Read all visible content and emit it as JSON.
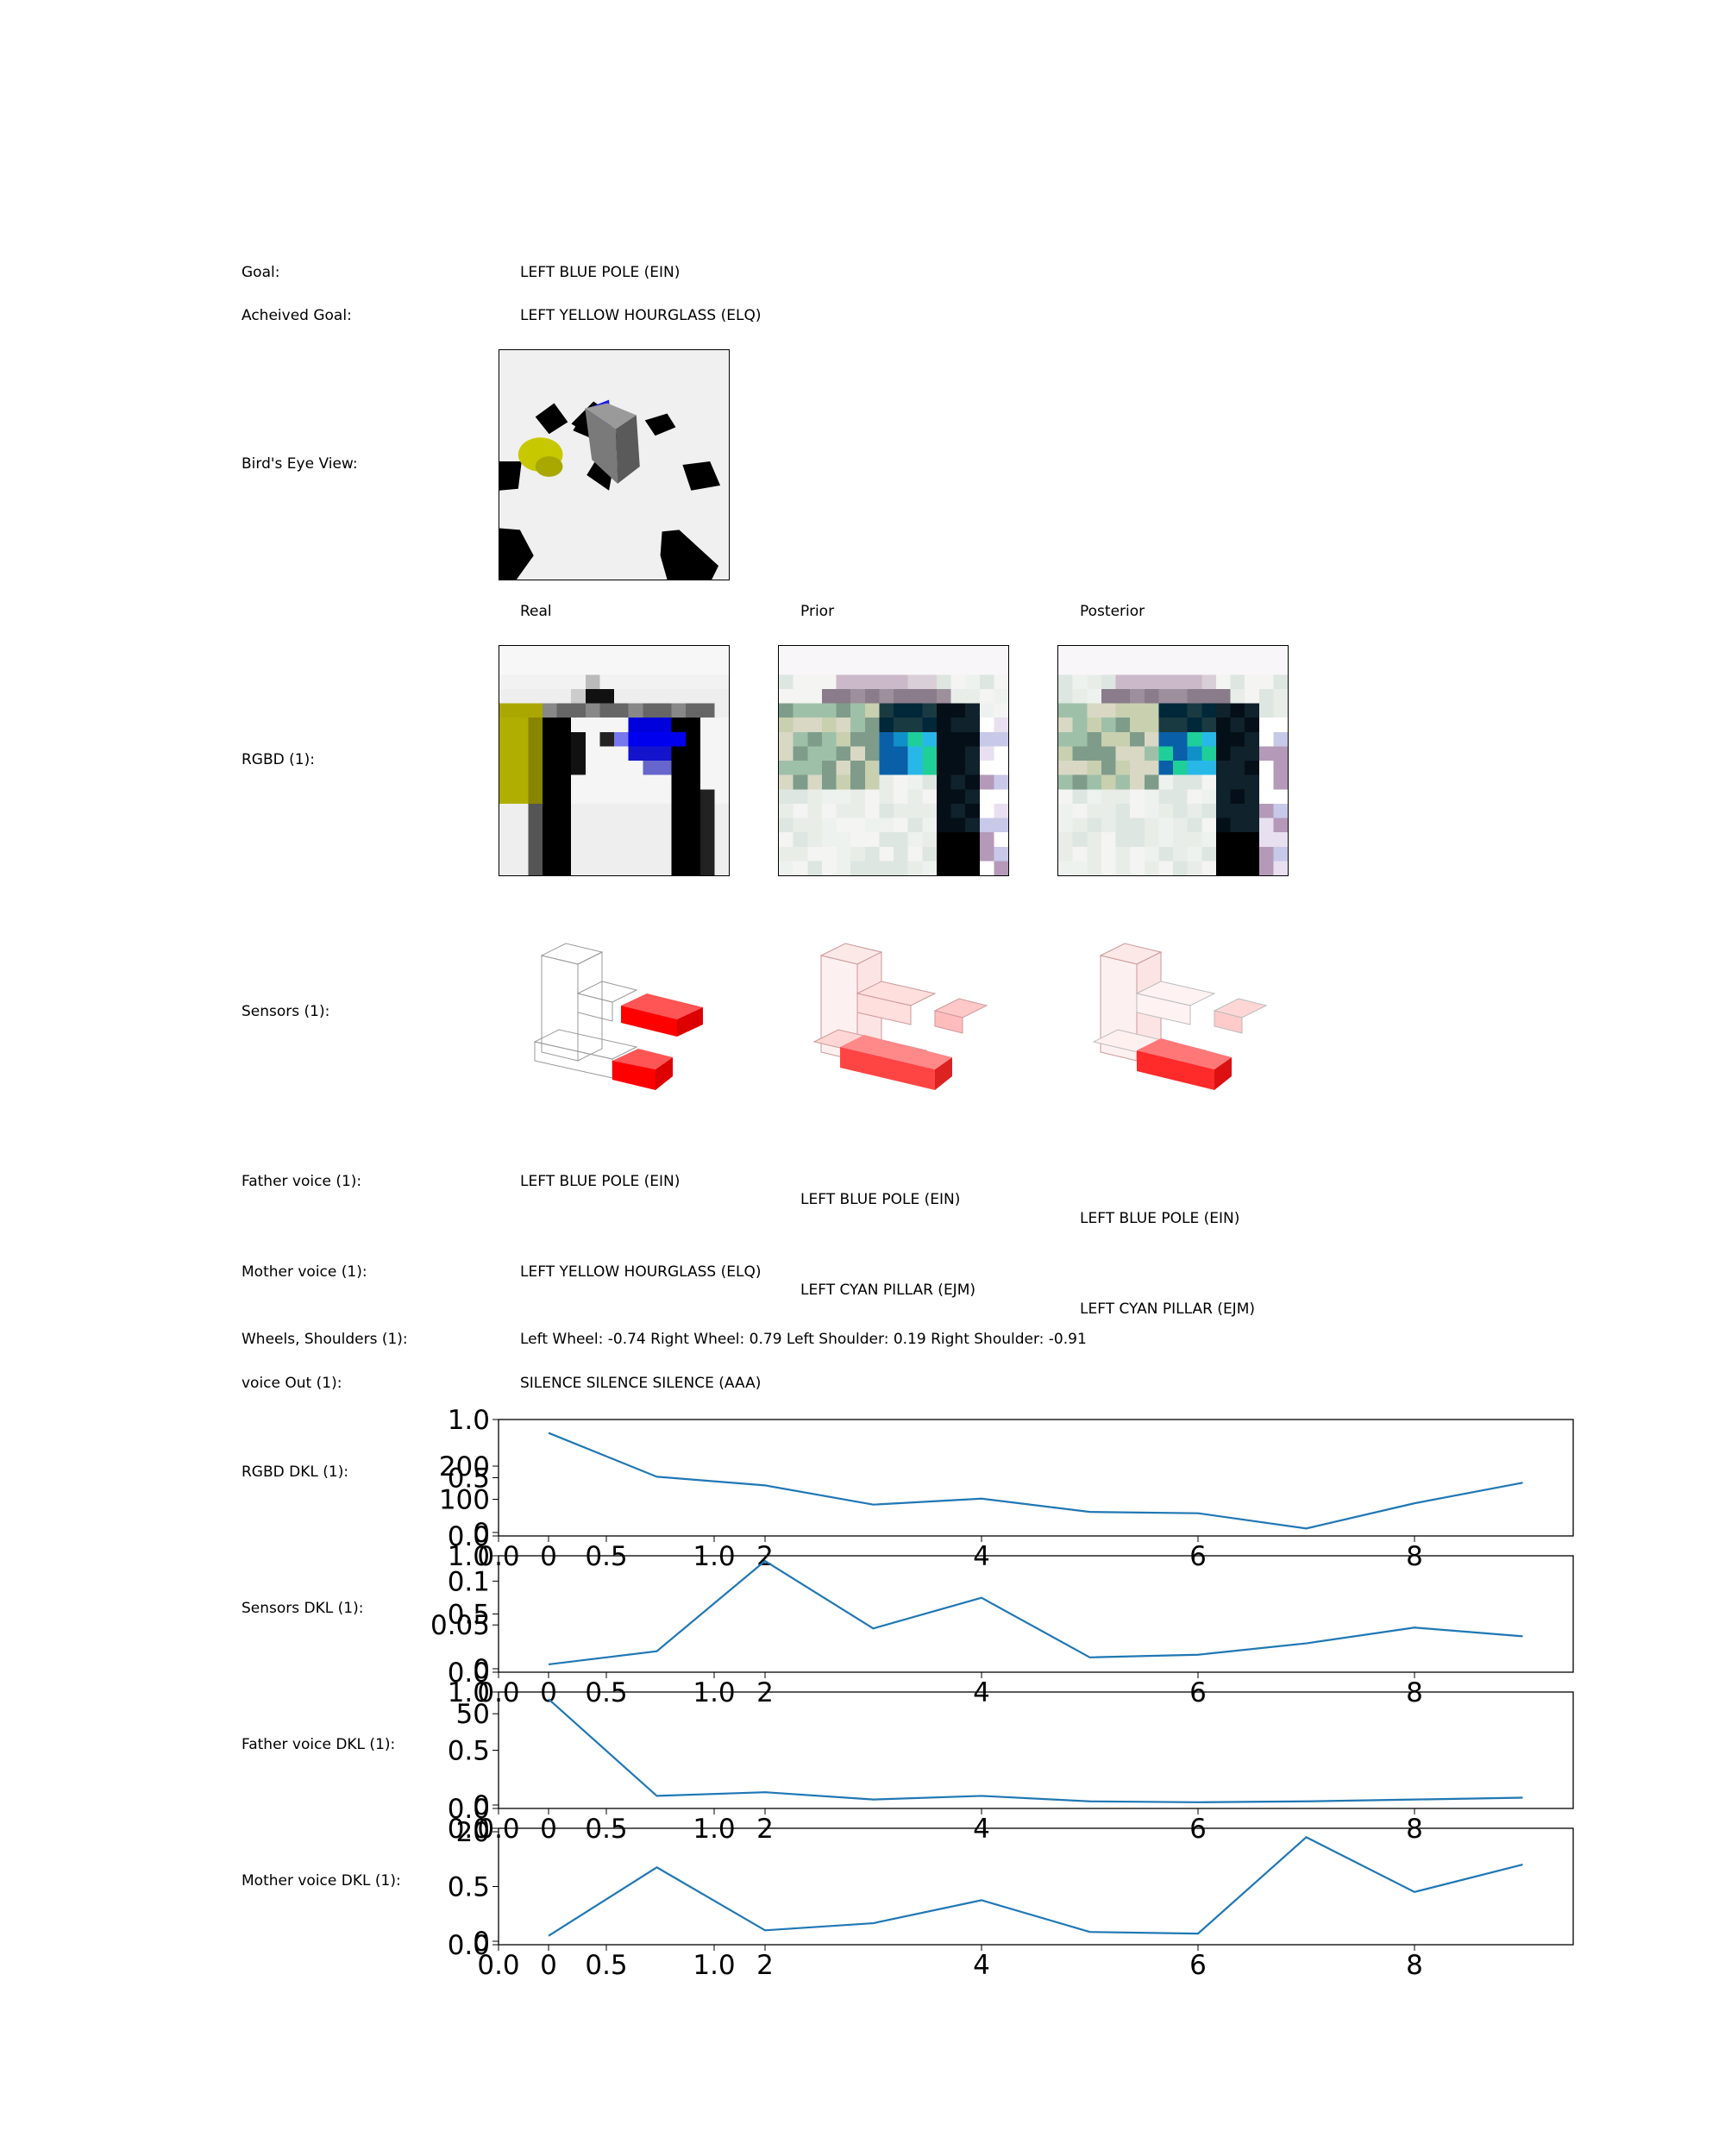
{
  "rows": {
    "goal_label": "Goal:",
    "goal_value": "LEFT BLUE POLE (EIN)",
    "achieved_label": "Acheived Goal:",
    "achieved_value": "LEFT YELLOW HOURGLASS (ELQ)",
    "birds_eye_label": "Bird's Eye View:",
    "rgbd_label": "RGBD (1):",
    "sensors_label": "Sensors (1):",
    "father_label": "Father voice (1):",
    "mother_label": "Mother voice (1):",
    "wheels_label": "Wheels, Shoulders (1):",
    "voice_out_label": "voice Out (1):"
  },
  "columns": {
    "real": "Real",
    "prior": "Prior",
    "posterior": "Posterior"
  },
  "father_voice": {
    "real": "LEFT BLUE POLE (EIN)",
    "prior": "LEFT BLUE POLE (EIN)",
    "posterior": "LEFT BLUE POLE (EIN)"
  },
  "mother_voice": {
    "real": "LEFT YELLOW HOURGLASS (ELQ)",
    "prior": "LEFT CYAN PILLAR (EJM)",
    "posterior": "LEFT CYAN PILLAR (EJM)"
  },
  "wheels_value": "Left Wheel: -0.74 Right Wheel: 0.79 Left Shoulder: 0.19 Right Shoulder: -0.91",
  "voice_out_value": "SILENCE SILENCE SILENCE (AAA)",
  "colors": {
    "line": "#1f77b4",
    "sensor_red": "#ff0000",
    "blue": "#0000ee",
    "yellow": "#b5b500"
  },
  "icons": {
    "birds_eye": "birds-eye-scene-icon",
    "rgbd_real": "rgbd-real-image",
    "rgbd_prior": "rgbd-prior-image",
    "rgbd_posterior": "rgbd-posterior-image",
    "sensors": "sensor-voxel-icon"
  },
  "chart_data": [
    {
      "type": "line",
      "label": "RGBD DKL (1):",
      "x": [
        0,
        1,
        2,
        3,
        4,
        5,
        6,
        7,
        8,
        9
      ],
      "values": [
        300,
        168,
        142,
        84,
        102,
        62,
        58,
        12,
        88,
        150
      ],
      "ylim": [
        0,
        330
      ],
      "yticks": [
        0,
        100,
        200
      ],
      "xticks": [
        0,
        2,
        4,
        6,
        8
      ],
      "overlay_yticks": [
        "0.0",
        "0.5",
        "1.0"
      ],
      "overlay_xticks": [
        "0.0",
        "0.5",
        "1.0"
      ]
    },
    {
      "type": "line",
      "label": "Sensors DKL (1):",
      "x": [
        0,
        1,
        2,
        3,
        4,
        5,
        6,
        7,
        8,
        9
      ],
      "values": [
        0.005,
        0.02,
        0.123,
        0.046,
        0.081,
        0.013,
        0.016,
        0.029,
        0.047,
        0.037
      ],
      "ylim": [
        0,
        0.125
      ],
      "yticks": [
        0,
        0.05,
        0.1
      ],
      "xticks": [
        0,
        2,
        4,
        6,
        8
      ],
      "overlay_yticks": [
        "0.0",
        "0.5",
        "1.0"
      ],
      "overlay_xticks": [
        "0.0",
        "0.5",
        "1.0"
      ]
    },
    {
      "type": "line",
      "label": "Father voice DKL (1):",
      "x": [
        0,
        1,
        2,
        3,
        4,
        5,
        6,
        7,
        8,
        9
      ],
      "values": [
        58,
        5,
        7,
        3,
        5,
        2,
        1.5,
        2,
        3,
        4
      ],
      "ylim": [
        0,
        60
      ],
      "yticks": [
        0,
        50
      ],
      "xticks": [
        0,
        2,
        4,
        6,
        8
      ],
      "overlay_yticks": [
        "0.0",
        "0.5",
        "1.0"
      ],
      "overlay_xticks": [
        "0.0",
        "0.5",
        "1.0"
      ]
    },
    {
      "type": "line",
      "label": "Mother voice DKL (1):",
      "x": [
        0,
        1,
        2,
        3,
        4,
        5,
        6,
        7,
        8,
        9
      ],
      "values": [
        1,
        13.5,
        2,
        3.3,
        7.5,
        1.7,
        1.4,
        19,
        9,
        14
      ],
      "ylim": [
        0,
        20
      ],
      "yticks": [
        0,
        20
      ],
      "xticks": [
        0,
        2,
        4,
        6,
        8
      ],
      "overlay_yticks": [
        "0.0",
        "0.5",
        "0.0"
      ],
      "overlay_xticks": [
        "0.0",
        "0.5",
        "1.0"
      ]
    }
  ]
}
